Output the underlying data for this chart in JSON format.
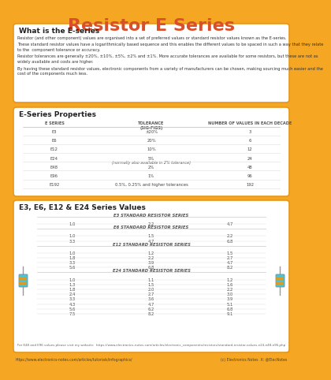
{
  "title": "Resistor E Series",
  "bg_color": "#F5A623",
  "title_color": "#D94F2B",
  "box_bg": "#FFFFFF",
  "box_border": "#E8961A",
  "section1_title": "What is the E-series",
  "section1_texts": [
    "Resistor (and other component) values are organised into a set of preferred values or standard resistor values known as the E-series.",
    "These standard resistor values have a logarithmically based sequence and this enables the different values to be spaced in such a way that they relate\nto the  component tolerance or accuracy.",
    "Resistor tolerances are generally ±20%, ±10%, ±5%, ±2% and ±1%. More accurate tolerances are available for some resistors, but these are not as\nwidely available and costs are higher.",
    "By having these standard resistor values, electronic components from a variety of manufacturers can be chosen, making sourcing much easier and the\ncost of the components much less."
  ],
  "section2_title": "E-Series Properties",
  "table_headers": [
    "E SERIES",
    "TOLERANCE\n(SIG-FIGS)",
    "NUMBER OF VALUES IN EACH DECADE"
  ],
  "table_rows": [
    [
      "E3",
      "±20%",
      "3"
    ],
    [
      "E6",
      "20%",
      "6"
    ],
    [
      "E12",
      "10%",
      "12"
    ],
    [
      "E24",
      "5%\n(normally also available in 2% tolerance)",
      "24"
    ],
    [
      "E48",
      "2%",
      "48"
    ],
    [
      "E96",
      "1%",
      "96"
    ],
    [
      "E192",
      "0.5%, 0.25% and higher tolerances",
      "192"
    ]
  ],
  "section3_title": "E3, E6, E12 & E24 Series Values",
  "e3_label": "E3 STANDARD RESISTOR SERIES",
  "e3_values": [
    [
      "1.0",
      "2.2",
      "4.7"
    ]
  ],
  "e6_label": "E6 STANDARD RESISTOR SERIES",
  "e6_values": [
    [
      "1.0",
      "1.5",
      "2.2"
    ],
    [
      "3.3",
      "4.7",
      "6.8"
    ]
  ],
  "e12_label": "E12 STANDARD RESISTOR SERIES",
  "e12_values": [
    [
      "1.0",
      "1.2",
      "1.5"
    ],
    [
      "1.8",
      "2.2",
      "2.7"
    ],
    [
      "3.3",
      "3.9",
      "4.7"
    ],
    [
      "5.6",
      "6.8",
      "8.2"
    ]
  ],
  "e24_label": "E24 STANDARD RESISTOR SERIES",
  "e24_values": [
    [
      "1.0",
      "1.1",
      "1.2"
    ],
    [
      "1.3",
      "1.5",
      "1.6"
    ],
    [
      "1.8",
      "2.0",
      "2.2"
    ],
    [
      "2.4",
      "2.7",
      "3.0"
    ],
    [
      "3.3",
      "3.6",
      "3.9"
    ],
    [
      "4.3",
      "4.7",
      "5.1"
    ],
    [
      "5.6",
      "6.2",
      "6.8"
    ],
    [
      "7.5",
      "8.2",
      "9.1"
    ]
  ],
  "footer_note": "For E48 and E96 values please visit my website:  https://www.electronics-notes.com/articles/electronic_components/resistors/standard-resistor-values-e24-e48-e96.php",
  "bottom_url": "https://www.electronics-notes.com/articles/tutorials/infographics/",
  "bottom_copy": "(c) Electronics Notes  X: @ElecNotes",
  "resistor_body_color": "#3EC9DC",
  "resistor_stripe_color": "#E8961A",
  "resistor_wire_color": "#999999"
}
